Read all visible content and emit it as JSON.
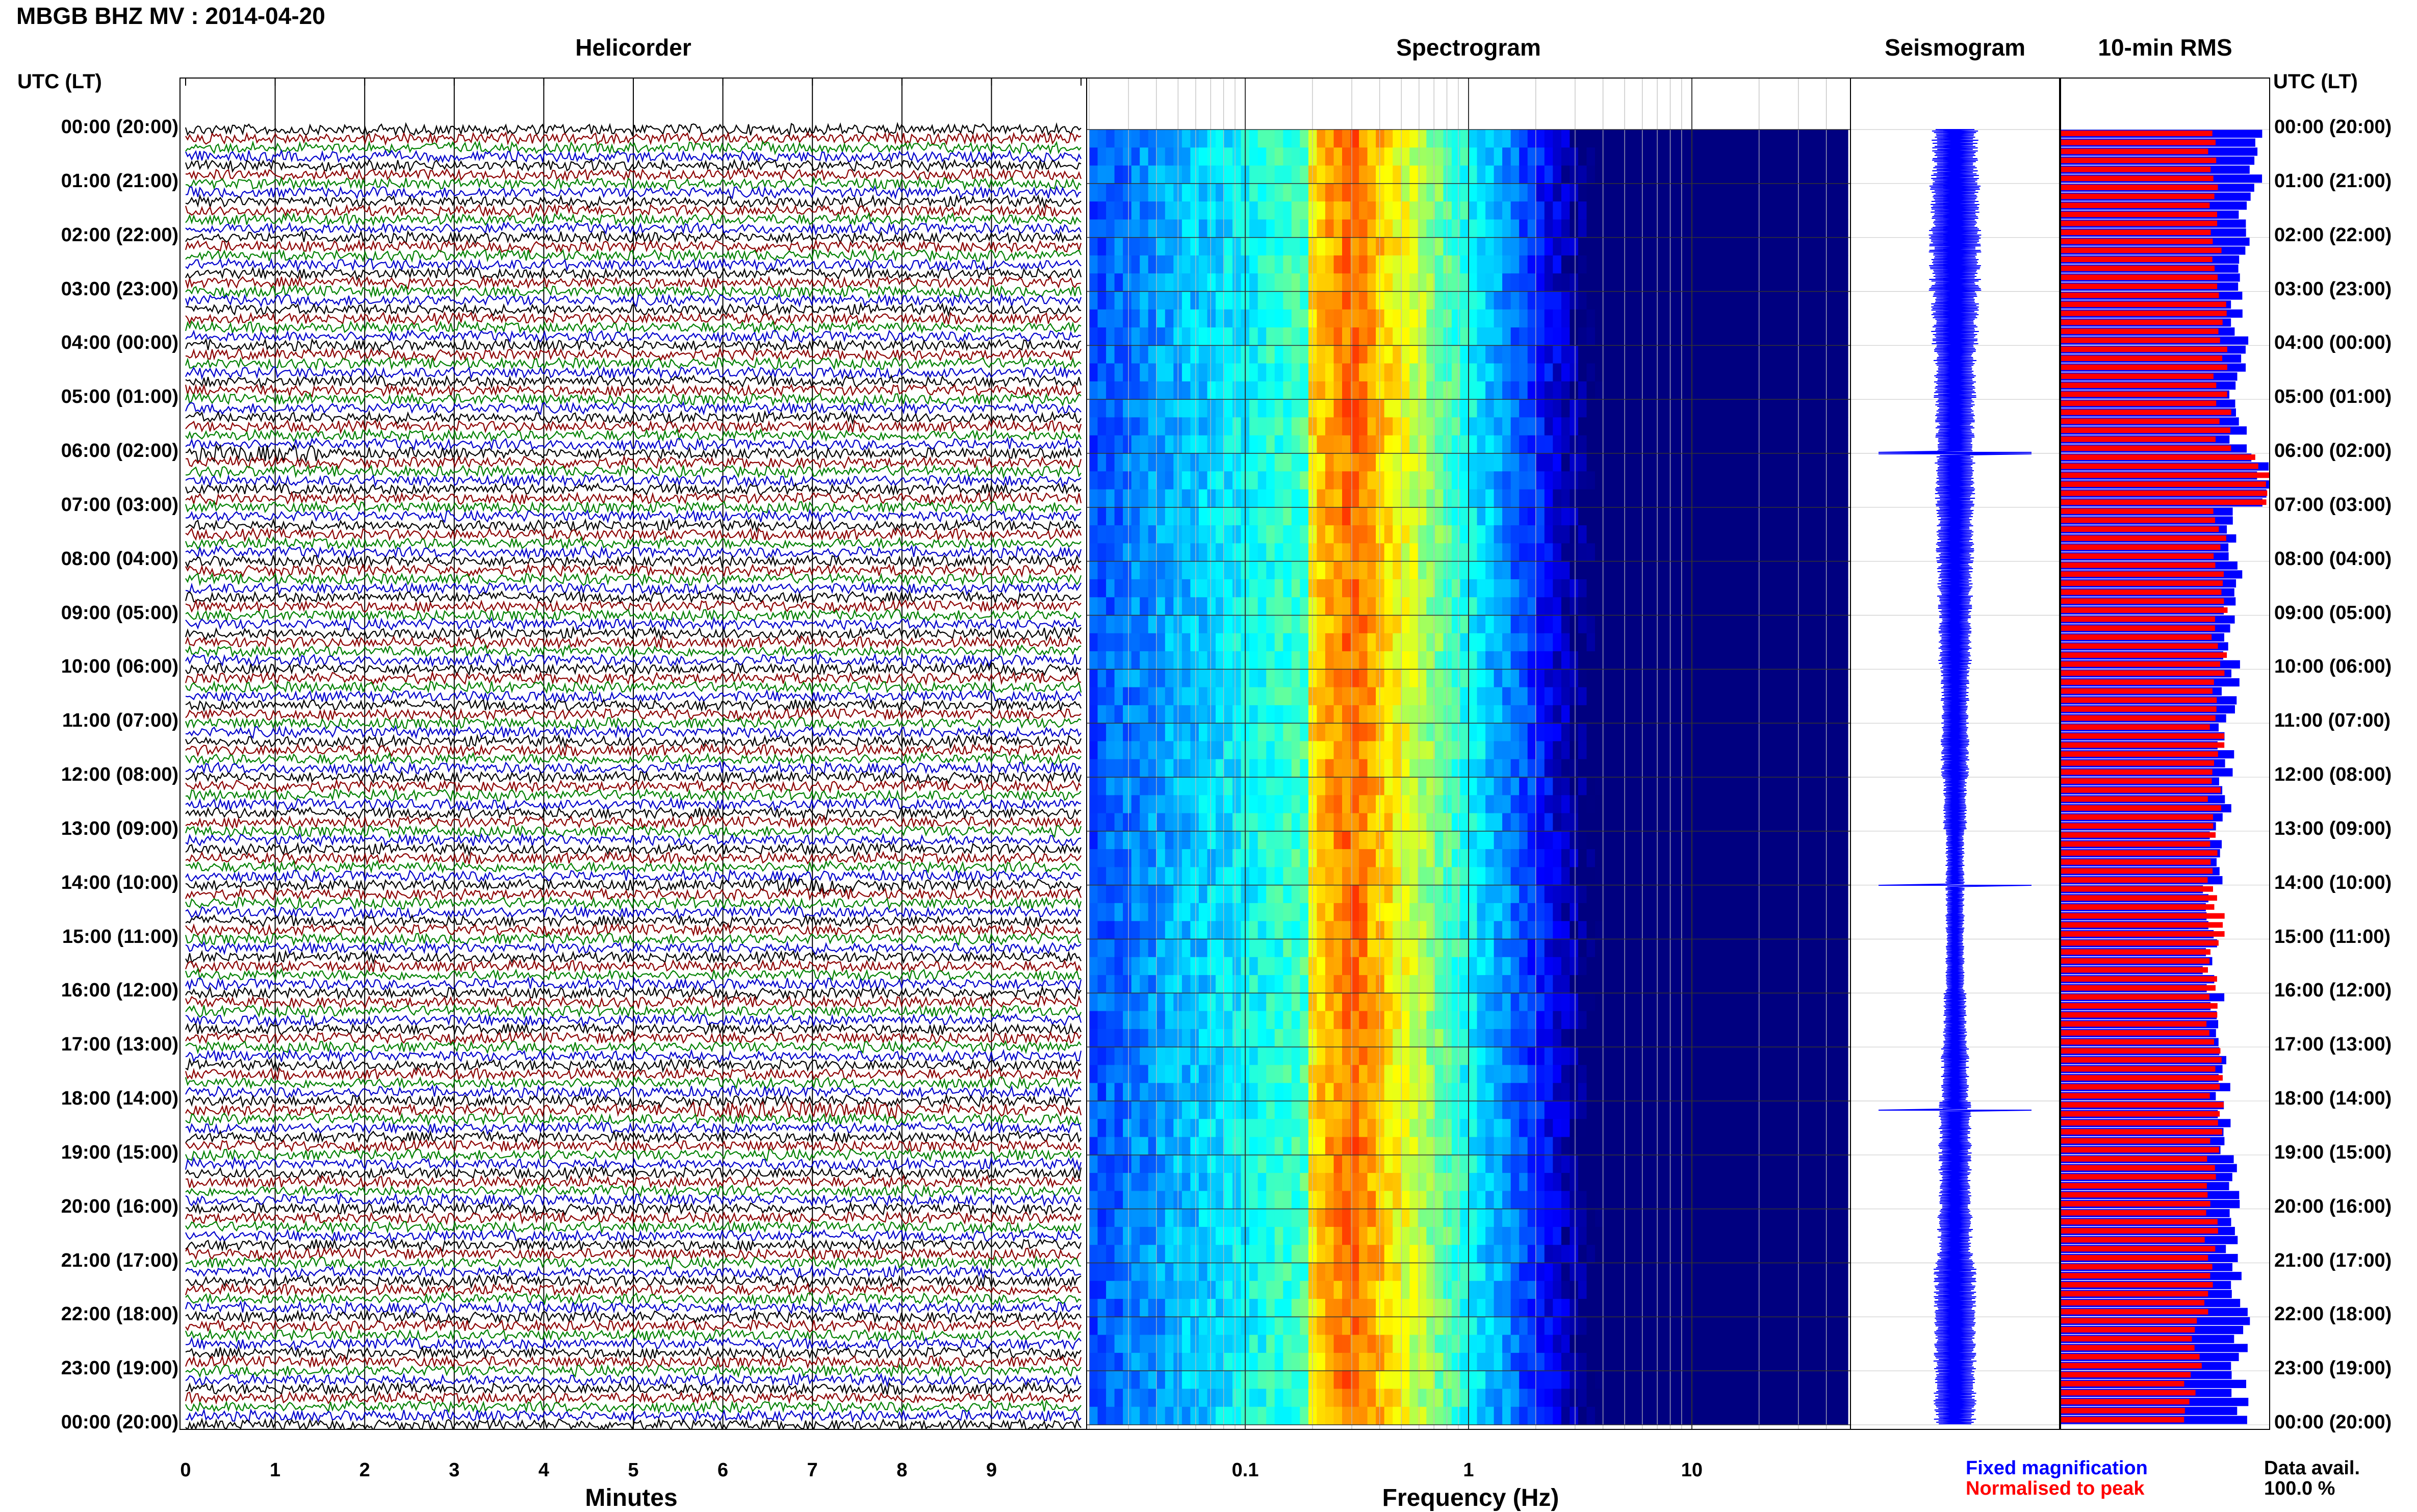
{
  "title": "MBGB BHZ MV : 2014-04-20",
  "panels": {
    "helicorder": "Helicorder",
    "spectrogram": "Spectrogram",
    "seismogram": "Seismogram",
    "rms": "10-min RMS"
  },
  "time_header_left": "UTC (LT)",
  "time_header_right": "UTC (LT)",
  "time_labels": [
    "00:00 (20:00)",
    "01:00 (21:00)",
    "02:00 (22:00)",
    "03:00 (23:00)",
    "04:00 (00:00)",
    "05:00 (01:00)",
    "06:00 (02:00)",
    "07:00 (03:00)",
    "08:00 (04:00)",
    "09:00 (05:00)",
    "10:00 (06:00)",
    "11:00 (07:00)",
    "12:00 (08:00)",
    "13:00 (09:00)",
    "14:00 (10:00)",
    "15:00 (11:00)",
    "16:00 (12:00)",
    "17:00 (13:00)",
    "18:00 (14:00)",
    "19:00 (15:00)",
    "20:00 (16:00)",
    "21:00 (17:00)",
    "22:00 (18:00)",
    "23:00 (19:00)",
    "00:00 (20:00)"
  ],
  "helicorder_xticks": [
    "0",
    "1",
    "2",
    "3",
    "4",
    "5",
    "6",
    "7",
    "8",
    "9"
  ],
  "helicorder_xlabel": "Minutes",
  "spectrogram_xticks": [
    "0.1",
    "1",
    "10"
  ],
  "spectrogram_xlabel": "Frequency (Hz)",
  "legend": {
    "fixed": "Fixed magnification",
    "normalised": "Normalised to peak",
    "avail_label": "Data avail.",
    "avail_value": "100.0 %"
  },
  "colors": {
    "trace_cycle": [
      "#000000",
      "#8b0000",
      "#008000",
      "#0000cc"
    ],
    "seismogram": "#0000ff",
    "rms_fixed": "#0000ff",
    "rms_normalised": "#ff0000"
  },
  "chart_data": [
    {
      "type": "line",
      "title": "Helicorder",
      "xlabel": "Minutes",
      "xlim": [
        0,
        10
      ],
      "rows_per_hour": 6,
      "hours": 24,
      "events": [
        {
          "time_utc": "06:00",
          "minute_range": [
            0.1,
            1.5
          ]
        },
        {
          "time_utc": "10:00",
          "minute_range": [
            8.9,
            9.1
          ]
        },
        {
          "time_utc": "14:00",
          "minute_range": [
            6.6,
            7.4
          ]
        },
        {
          "time_utc": "18:10",
          "minute_range": [
            5.6,
            8.0
          ]
        }
      ]
    },
    {
      "type": "heatmap",
      "title": "Spectrogram",
      "xlabel": "Frequency (Hz)",
      "xscale": "log",
      "xlim": [
        0.02,
        50
      ],
      "peak_band_hz": [
        0.2,
        0.45
      ]
    },
    {
      "type": "line",
      "title": "Seismogram",
      "envelope_width": [
        0.2,
        0.22,
        0.22,
        0.2,
        0.18,
        0.17,
        0.17,
        0.16,
        0.15,
        0.14,
        0.12,
        0.12,
        0.1,
        0.08,
        0.08,
        0.08,
        0.1,
        0.12,
        0.14,
        0.14,
        0.15,
        0.18,
        0.18,
        0.18
      ],
      "spikes_utc": [
        "06:00",
        "14:00",
        "18:10"
      ]
    },
    {
      "type": "bar",
      "title": "10-min RMS",
      "series": [
        {
          "name": "Fixed magnification",
          "values": [
            0.92,
            0.9,
            0.88,
            0.86,
            0.85,
            0.85,
            0.95,
            0.84,
            0.83,
            0.82,
            0.82,
            0.8,
            0.78,
            0.74,
            0.7,
            0.72,
            0.76,
            0.78,
            0.8,
            0.82,
            0.84,
            0.86,
            0.86,
            0.86
          ]
        },
        {
          "name": "Normalised to peak",
          "values": [
            0.72,
            0.72,
            0.75,
            0.77,
            0.77,
            0.78,
            0.98,
            0.77,
            0.77,
            0.76,
            0.75,
            0.75,
            0.74,
            0.72,
            0.75,
            0.73,
            0.72,
            0.74,
            0.75,
            0.73,
            0.72,
            0.72,
            0.66,
            0.62
          ]
        }
      ]
    }
  ]
}
